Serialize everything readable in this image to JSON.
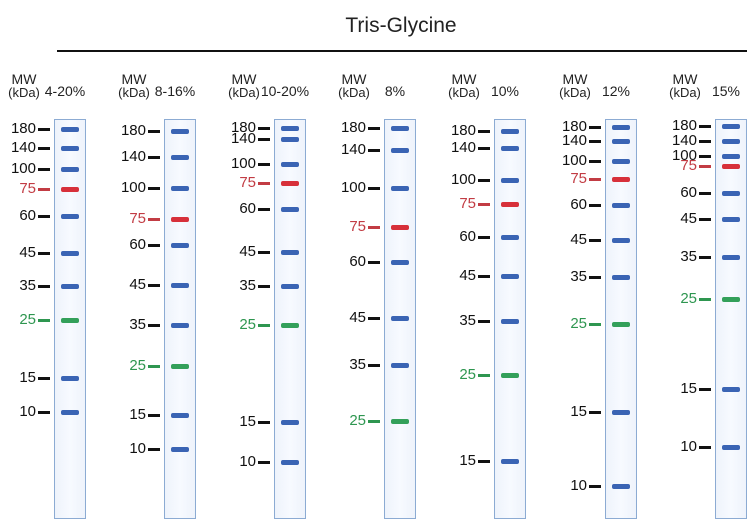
{
  "title": "Tris-Glycine",
  "mw_label": "MW",
  "unit_label": "(kDa)",
  "colors": {
    "band_default": "#3a64b4",
    "band_red": "#d7303a",
    "band_green": "#33a05a",
    "label_default": "#111111",
    "label_red": "#c23c44",
    "label_green": "#2e9650",
    "tick": "#111111"
  },
  "gels": [
    {
      "percent": "4-20%",
      "markers": [
        {
          "kda": "180",
          "color": "default"
        },
        {
          "kda": "140",
          "color": "default"
        },
        {
          "kda": "100",
          "color": "default"
        },
        {
          "kda": "75",
          "color": "red"
        },
        {
          "kda": "60",
          "color": "default"
        },
        {
          "kda": "45",
          "color": "default"
        },
        {
          "kda": "35",
          "color": "default"
        },
        {
          "kda": "25",
          "color": "green"
        },
        {
          "kda": "15",
          "color": "default"
        },
        {
          "kda": "10",
          "color": "default"
        }
      ]
    },
    {
      "percent": "8-16%",
      "markers": [
        {
          "kda": "180",
          "color": "default"
        },
        {
          "kda": "140",
          "color": "default"
        },
        {
          "kda": "100",
          "color": "default"
        },
        {
          "kda": "75",
          "color": "red"
        },
        {
          "kda": "60",
          "color": "default"
        },
        {
          "kda": "45",
          "color": "default"
        },
        {
          "kda": "35",
          "color": "default"
        },
        {
          "kda": "25",
          "color": "green"
        },
        {
          "kda": "15",
          "color": "default"
        },
        {
          "kda": "10",
          "color": "default"
        }
      ]
    },
    {
      "percent": "10-20%",
      "markers": [
        {
          "kda": "180",
          "color": "default"
        },
        {
          "kda": "140",
          "color": "default"
        },
        {
          "kda": "100",
          "color": "default"
        },
        {
          "kda": "75",
          "color": "red"
        },
        {
          "kda": "60",
          "color": "default"
        },
        {
          "kda": "45",
          "color": "default"
        },
        {
          "kda": "35",
          "color": "default"
        },
        {
          "kda": "25",
          "color": "green"
        },
        {
          "kda": "15",
          "color": "default"
        },
        {
          "kda": "10",
          "color": "default"
        }
      ]
    },
    {
      "percent": "8%",
      "markers": [
        {
          "kda": "180",
          "color": "default"
        },
        {
          "kda": "140",
          "color": "default"
        },
        {
          "kda": "100",
          "color": "default"
        },
        {
          "kda": "75",
          "color": "red"
        },
        {
          "kda": "60",
          "color": "default"
        },
        {
          "kda": "45",
          "color": "default"
        },
        {
          "kda": "35",
          "color": "default"
        },
        {
          "kda": "25",
          "color": "green"
        }
      ]
    },
    {
      "percent": "10%",
      "markers": [
        {
          "kda": "180",
          "color": "default"
        },
        {
          "kda": "140",
          "color": "default"
        },
        {
          "kda": "100",
          "color": "default"
        },
        {
          "kda": "75",
          "color": "red"
        },
        {
          "kda": "60",
          "color": "default"
        },
        {
          "kda": "45",
          "color": "default"
        },
        {
          "kda": "35",
          "color": "default"
        },
        {
          "kda": "25",
          "color": "green"
        },
        {
          "kda": "15",
          "color": "default"
        }
      ]
    },
    {
      "percent": "12%",
      "markers": [
        {
          "kda": "180",
          "color": "default"
        },
        {
          "kda": "140",
          "color": "default"
        },
        {
          "kda": "100",
          "color": "default"
        },
        {
          "kda": "75",
          "color": "red"
        },
        {
          "kda": "60",
          "color": "default"
        },
        {
          "kda": "45",
          "color": "default"
        },
        {
          "kda": "35",
          "color": "default"
        },
        {
          "kda": "25",
          "color": "green"
        },
        {
          "kda": "15",
          "color": "default"
        },
        {
          "kda": "10",
          "color": "default"
        }
      ]
    },
    {
      "percent": "15%",
      "markers": [
        {
          "kda": "180",
          "color": "default"
        },
        {
          "kda": "140",
          "color": "default"
        },
        {
          "kda": "100",
          "color": "default"
        },
        {
          "kda": "75",
          "color": "red"
        },
        {
          "kda": "60",
          "color": "default"
        },
        {
          "kda": "45",
          "color": "default"
        },
        {
          "kda": "35",
          "color": "default"
        },
        {
          "kda": "25",
          "color": "green"
        },
        {
          "kda": "15",
          "color": "default"
        },
        {
          "kda": "10",
          "color": "default"
        }
      ]
    }
  ]
}
